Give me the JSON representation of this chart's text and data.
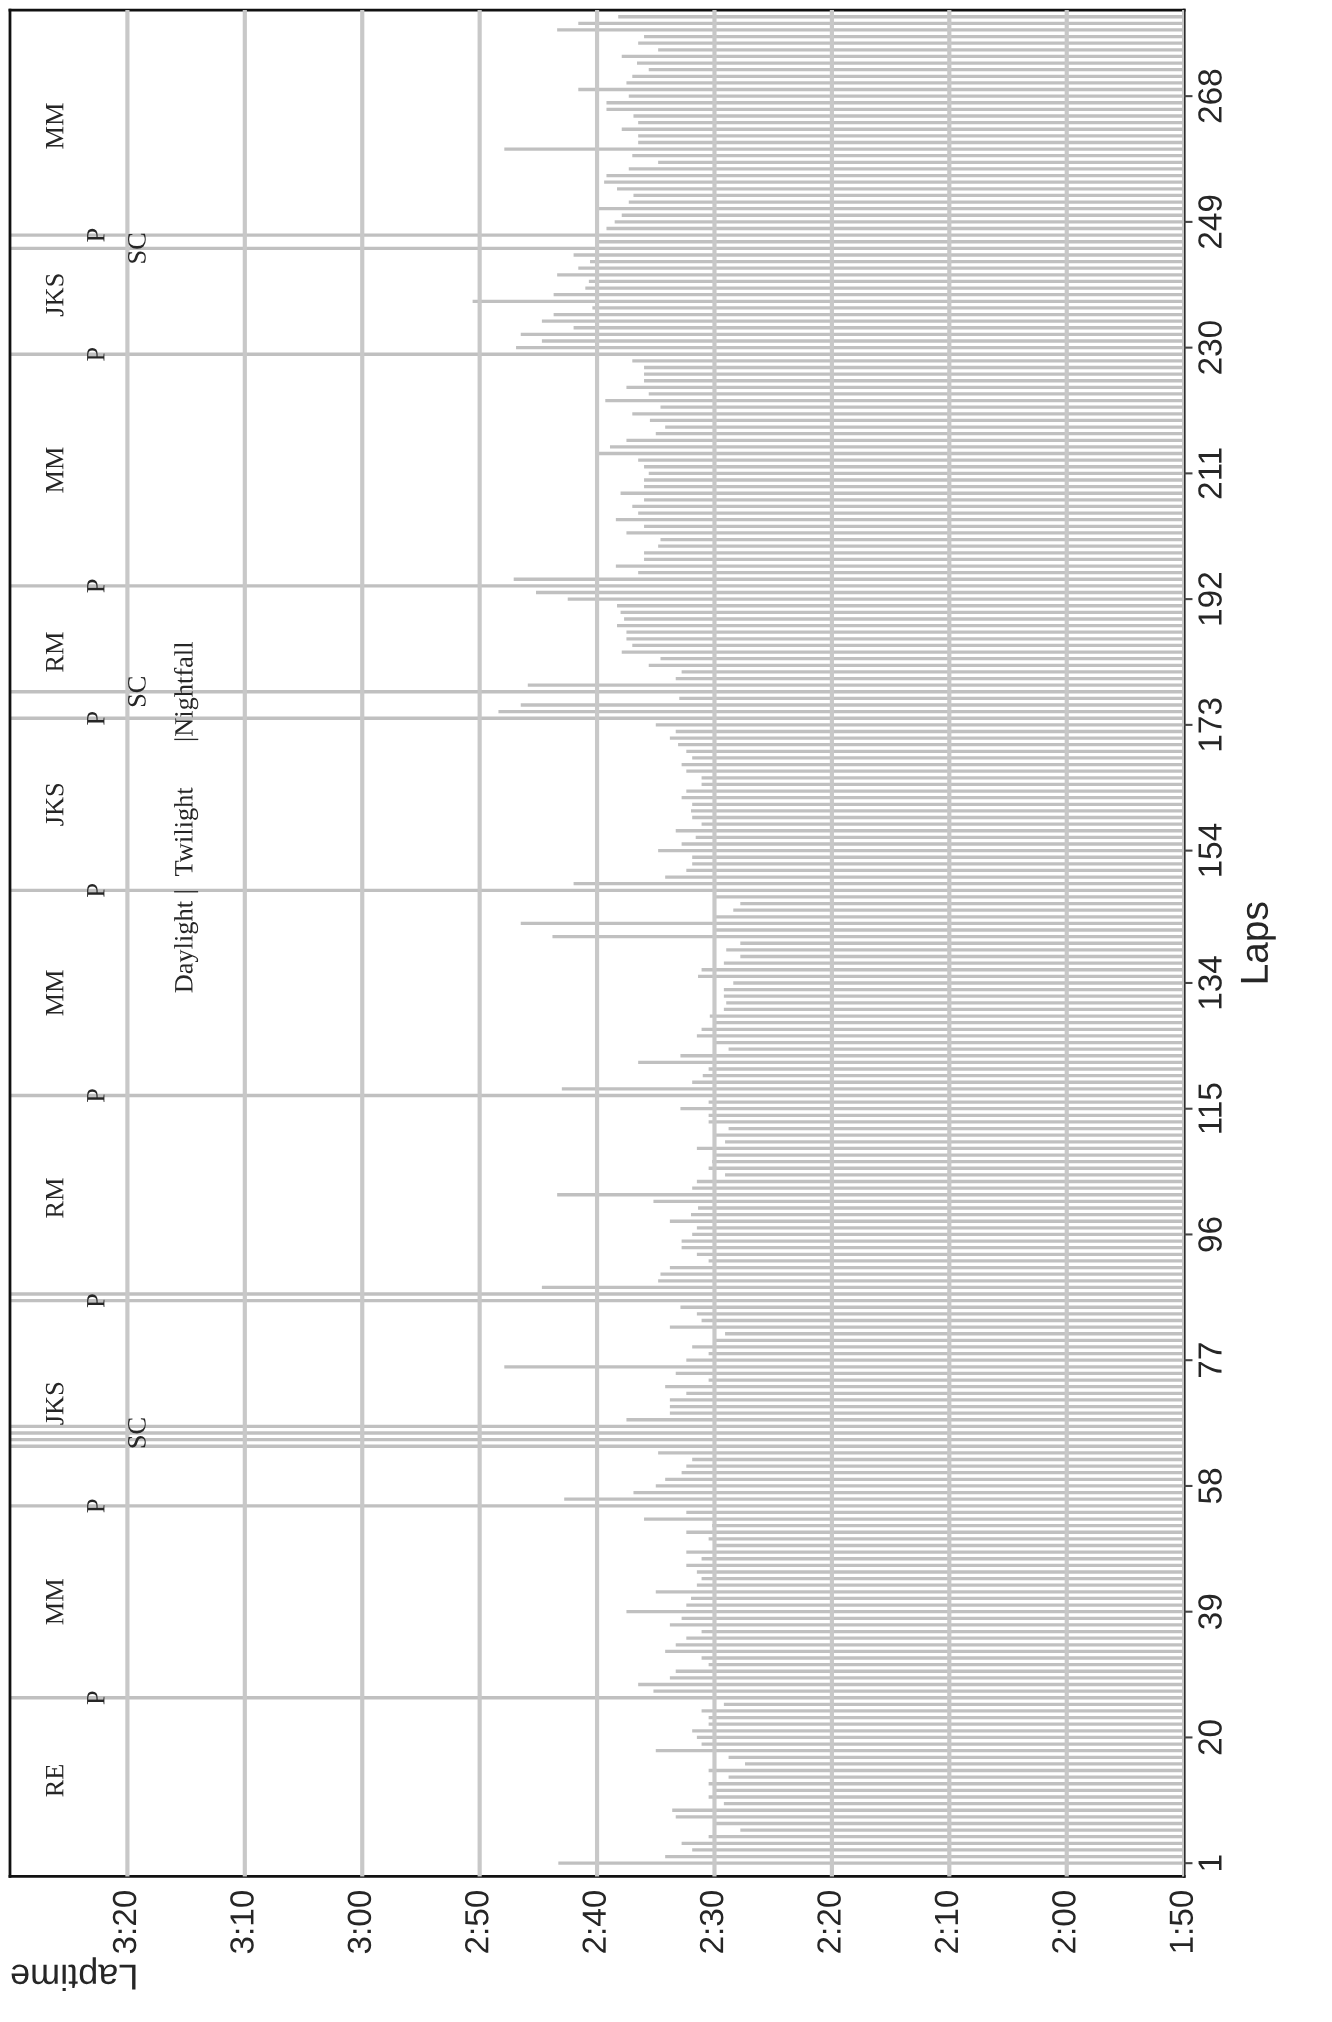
{
  "chart_data": {
    "type": "bar",
    "orientation": "horizontal",
    "xlabel": "Laptime",
    "ylabel": "Laps",
    "color": "#c0c0c0",
    "grid": "x",
    "xlim": [
      210,
      110
    ],
    "xticks": [
      {
        "value": 200,
        "label": "3:20"
      },
      {
        "value": 190,
        "label": "3:10"
      },
      {
        "value": 180,
        "label": "3:00"
      },
      {
        "value": 170,
        "label": "2:50"
      },
      {
        "value": 160,
        "label": "2:40"
      },
      {
        "value": 150,
        "label": "2:30"
      },
      {
        "value": 140,
        "label": "2:20"
      },
      {
        "value": 130,
        "label": "2:10"
      },
      {
        "value": 120,
        "label": "2:00"
      },
      {
        "value": 110,
        "label": "1:50"
      }
    ],
    "ylim": [
      -1,
      281
    ],
    "yticks": [
      1,
      20,
      39,
      58,
      77,
      96,
      115,
      134,
      154,
      173,
      192,
      211,
      230,
      249,
      268
    ],
    "x": [
      280,
      279,
      278,
      277,
      276,
      275,
      274,
      273,
      272,
      271,
      270,
      269,
      268,
      267,
      266,
      265,
      264,
      263,
      262,
      261,
      260,
      259,
      258,
      257,
      256,
      255,
      254,
      253,
      252,
      251,
      250,
      249,
      248,
      247,
      246,
      245,
      244,
      243,
      242,
      241,
      240,
      239,
      238,
      237,
      236,
      235,
      234,
      233,
      232,
      231,
      230,
      229,
      228,
      227,
      226,
      225,
      224,
      223,
      222,
      221,
      220,
      219,
      218,
      217,
      216,
      215,
      214,
      213,
      212,
      211,
      210,
      209,
      208,
      207,
      206,
      205,
      204,
      203,
      202,
      201,
      200,
      199,
      198,
      197,
      196,
      195,
      194,
      193,
      192,
      191,
      190,
      189,
      188,
      187,
      186,
      185,
      184,
      183,
      182,
      181,
      180,
      179,
      178,
      177,
      176,
      175,
      174,
      173,
      172,
      171,
      170,
      169,
      168,
      167,
      166,
      165,
      164,
      163,
      162,
      161,
      160,
      159,
      158,
      157,
      156,
      155,
      154,
      153,
      152,
      151,
      150,
      149,
      148,
      147,
      146,
      145,
      144,
      143,
      142,
      141,
      140,
      139,
      138,
      137,
      136,
      135,
      134,
      133,
      132,
      131,
      130,
      129,
      128,
      127,
      126,
      125,
      124,
      123,
      122,
      121,
      120,
      119,
      118,
      117,
      116,
      115,
      114,
      113,
      112,
      111,
      110,
      109,
      108,
      107,
      106,
      105,
      104,
      103,
      102,
      101,
      100,
      99,
      98,
      97,
      96,
      95,
      94,
      93,
      92,
      91,
      90,
      89,
      88,
      87,
      86,
      85,
      84,
      83,
      82,
      81,
      80,
      79,
      78,
      77,
      76,
      75,
      74,
      73,
      72,
      71,
      70,
      69,
      68,
      67,
      66,
      65,
      64,
      63,
      62,
      61,
      60,
      59,
      58,
      57,
      56,
      55,
      54,
      53,
      52,
      51,
      50,
      49,
      48,
      47,
      46,
      45,
      44,
      43,
      42,
      41,
      40,
      39,
      38,
      37,
      36,
      35,
      34,
      33,
      32,
      31,
      30,
      29,
      28,
      27,
      26,
      25,
      24,
      23,
      22,
      21,
      20,
      19,
      18,
      17,
      16,
      15,
      14,
      13,
      12,
      11,
      10,
      9,
      8,
      7,
      6,
      5,
      4,
      3,
      2,
      1
    ],
    "values": [
      158.2,
      161.6,
      163.4,
      156,
      156.5,
      154.8,
      157.9,
      156.6,
      155.6,
      157,
      157.5,
      161.6,
      157.3,
      159.2,
      159.2,
      156.9,
      156.5,
      157.9,
      156.5,
      156.5,
      167.9,
      157,
      154.8,
      157.3,
      159.2,
      159.4,
      158.3,
      156.9,
      157.3,
      159.9,
      157.9,
      158.5,
      159.2,
      210,
      160,
      210,
      162,
      160.6,
      161.6,
      163.4,
      160.7,
      161,
      163.7,
      170.6,
      160.4,
      163.7,
      164.7,
      162,
      166.5,
      164.7,
      166.9,
      210,
      157,
      156,
      156,
      156,
      157.5,
      155.6,
      159.3,
      154.6,
      157,
      155.5,
      154.2,
      155,
      157.5,
      158.9,
      159.9,
      156.5,
      156,
      155.6,
      156,
      156,
      158,
      156,
      157,
      156.5,
      158.4,
      156,
      157.5,
      154.6,
      154.8,
      156,
      156,
      158.4,
      156.5,
      167.1,
      210,
      165.2,
      162.5,
      158.3,
      158,
      157.7,
      158.3,
      157.5,
      157.5,
      157,
      157.9,
      154.6,
      155.6,
      152.8,
      153.3,
      165.9,
      210,
      153,
      166.5,
      168.4,
      210,
      155,
      153.3,
      153.8,
      153.1,
      152.4,
      151.9,
      152.8,
      152.4,
      151.1,
      151.1,
      152.4,
      152.8,
      151.9,
      152,
      151.9,
      151.1,
      153.3,
      151.6,
      152.8,
      154.8,
      151.9,
      151.9,
      152.4,
      154.2,
      162,
      210,
      149.9,
      147.8,
      148.4,
      150,
      166.5,
      150,
      163.8,
      147.8,
      149,
      147.8,
      149.2,
      151.1,
      151.4,
      148.4,
      149.2,
      149.2,
      149,
      149.2,
      150.4,
      150,
      151.1,
      151.5,
      150,
      148.8,
      152.9,
      156.5,
      150.5,
      151,
      151.9,
      163,
      210,
      150.5,
      152.9,
      150.5,
      150.5,
      148.8,
      150,
      149.1,
      151.5,
      150,
      150.2,
      150.5,
      149.1,
      151.5,
      151.9,
      163.4,
      155.2,
      151.4,
      152,
      153.8,
      151.5,
      151.9,
      152.8,
      152.8,
      151.5,
      150.5,
      153.8,
      154.6,
      154.8,
      164.7,
      210,
      210,
      152.9,
      151.5,
      151.1,
      153.8,
      149.1,
      150,
      151.9,
      150.5,
      152.4,
      167.9,
      153.3,
      150.5,
      154.2,
      152.4,
      153.8,
      153.8,
      153.8,
      157.5,
      210,
      210,
      210,
      210,
      154.8,
      151.9,
      152.4,
      152.8,
      154.2,
      155,
      156.9,
      162.8,
      210,
      152.4,
      156,
      150.2,
      152.4,
      150.5,
      150,
      152.4,
      151.1,
      152.4,
      151.5,
      151.1,
      151.5,
      155,
      152,
      152.4,
      157.5,
      152.8,
      153.8,
      151.1,
      152.4,
      153.3,
      154.2,
      151.1,
      150.5,
      153.3,
      153.8,
      156.5,
      155.2,
      210,
      149.2,
      151.1,
      150.5,
      150.5,
      151.9,
      151.5,
      151.1,
      155,
      148.8,
      147.4,
      150.5,
      148.8,
      150.5,
      150,
      150.5,
      149.2,
      153.6,
      153.3,
      150,
      147.8,
      150.5,
      152.8,
      151.9,
      154.2,
      163.3
    ],
    "annotations": [
      {
        "text": "P",
        "x": 202.5,
        "y": 26
      },
      {
        "text": "P",
        "x": 202.5,
        "y": 55
      },
      {
        "text": "P",
        "x": 202.5,
        "y": 86
      },
      {
        "text": "P",
        "x": 202.5,
        "y": 117
      },
      {
        "text": "P",
        "x": 202.5,
        "y": 148
      },
      {
        "text": "P",
        "x": 202.5,
        "y": 174
      },
      {
        "text": "P",
        "x": 202.5,
        "y": 194
      },
      {
        "text": "P",
        "x": 202.5,
        "y": 229
      },
      {
        "text": "P",
        "x": 202.5,
        "y": 247
      },
      {
        "text": "SC",
        "x": 199,
        "y": 66
      },
      {
        "text": "SC",
        "x": 199,
        "y": 178
      },
      {
        "text": "SC",
        "x": 199,
        "y": 245
      },
      {
        "text": "Daylight |  Twilight",
        "x": 195,
        "y": 148
      },
      {
        "text": "|Nightfall",
        "x": 195,
        "y": 178
      },
      "RE",
      "MM",
      "JKS",
      "RM",
      "MM",
      "JKS",
      "RM",
      "MM",
      "JKS",
      "MM"
    ]
  }
}
